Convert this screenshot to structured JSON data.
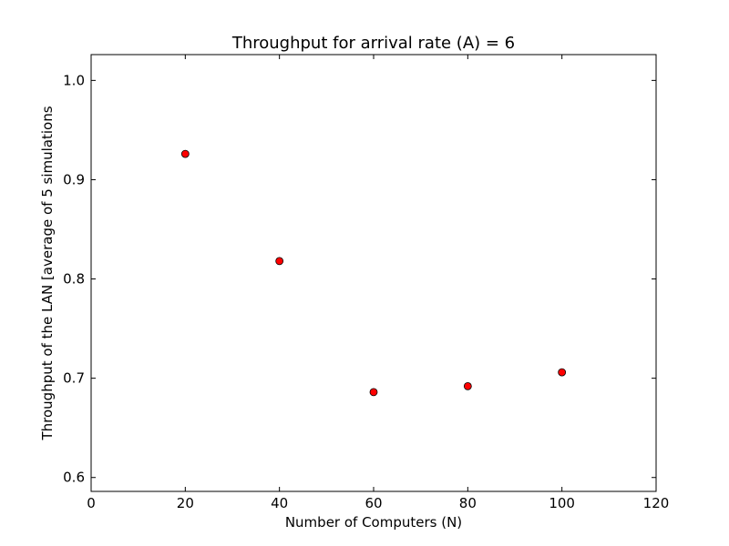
{
  "chart_data": {
    "type": "scatter",
    "title": "Throughput for arrival rate (A) = 6",
    "xlabel": "Number of Computers (N)",
    "ylabel": "Throughput of the LAN [average of 5 simulations",
    "xlim": [
      0,
      120
    ],
    "ylim": [
      0.586,
      1.026
    ],
    "xticks": [
      0,
      20,
      40,
      60,
      80,
      100,
      120
    ],
    "yticks": [
      0.6,
      0.7,
      0.8,
      0.9,
      1.0
    ],
    "xtick_labels": [
      "0",
      "20",
      "40",
      "60",
      "80",
      "100",
      "120"
    ],
    "ytick_labels": [
      "0.6",
      "0.7",
      "0.8",
      "0.9",
      "1.0"
    ],
    "grid": false,
    "marker_color": "#ff0000",
    "marker_edge_color": "#000000",
    "series": [
      {
        "x": [
          20,
          40,
          60,
          80,
          100
        ],
        "y": [
          0.926,
          0.818,
          0.686,
          0.692,
          0.706
        ]
      }
    ]
  }
}
